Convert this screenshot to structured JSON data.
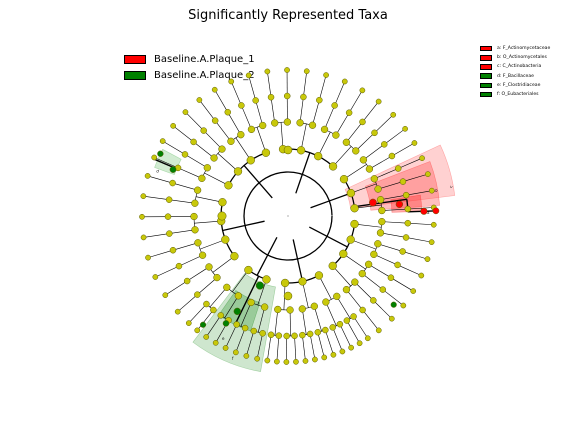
{
  "title": "Significantly Represented Taxa",
  "colors": {
    "plaque1": "#ff0000",
    "plaque2": "#008000",
    "node_default": "#c8c80a",
    "node_stroke": "#5a5a00"
  },
  "legend": [
    {
      "label": "Baseline.A.Plaque_1",
      "color": "#ff0000"
    },
    {
      "label": "Baseline.A.Plaque_2",
      "color": "#008000"
    }
  ],
  "taxa_legend": [
    {
      "label": "a: F_Actinomycetaceae",
      "color": "#ff0000"
    },
    {
      "label": "b: O_Actinomycetales",
      "color": "#ff0000"
    },
    {
      "label": "c: C_Actinobacteria",
      "color": "#ff0000"
    },
    {
      "label": "d: F_Bacillaceae",
      "color": "#008000"
    },
    {
      "label": "e: F_Clostridiaceae",
      "color": "#008000"
    },
    {
      "label": "f: O_Eubacteriales",
      "color": "#008000"
    }
  ],
  "highlight_labels": {
    "red_a": "a",
    "red_b": "b",
    "red_c": "c",
    "green_d": "d",
    "green_e": "e",
    "green_f": "f"
  }
}
